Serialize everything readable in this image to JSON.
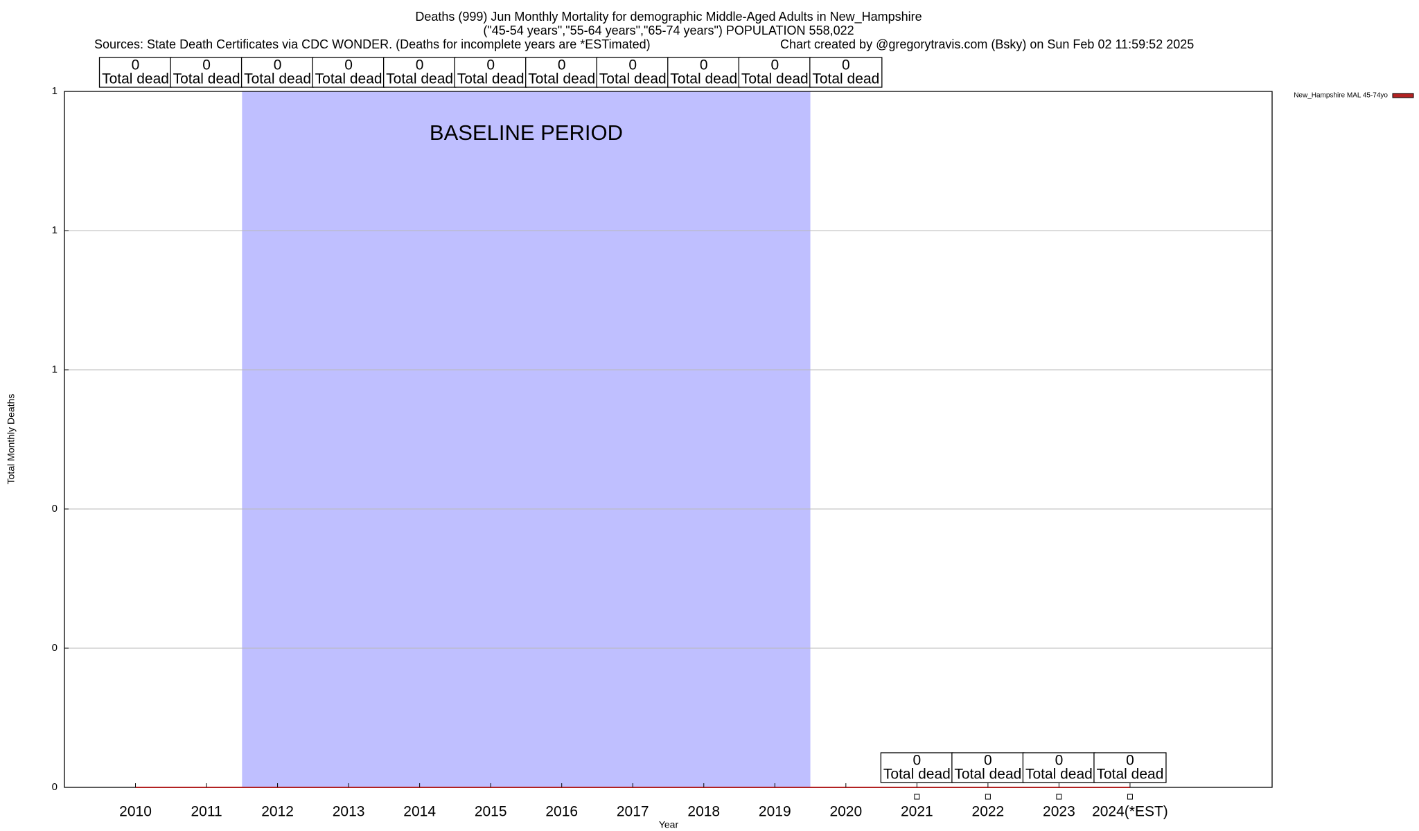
{
  "chart_data": {
    "type": "line",
    "title": "Deaths (999) Jun Monthly Mortality for demographic Middle-Aged Adults in New_Hampshire",
    "subtitle": "(\"45-54 years\",\"55-64 years\",\"65-74 years\") POPULATION 558,022",
    "sources": "Sources: State Death Certificates via CDC WONDER. (Deaths for incomplete years are *ESTimated)",
    "credit": "Chart created by @gregorytravis.com (Bsky) on Sun Feb 02 11:59:52 2025",
    "x_label": "Year",
    "y_label": "Total Monthly Deaths",
    "categories": [
      "2010",
      "2011",
      "2012",
      "2013",
      "2014",
      "2015",
      "2016",
      "2017",
      "2018",
      "2019",
      "2020",
      "2021",
      "2022",
      "2023",
      "2024(*EST)"
    ],
    "series": [
      {
        "name": "New_Hampshire MAL 45-74yo",
        "color": "#b22222",
        "values": [
          0,
          0,
          0,
          0,
          0,
          0,
          0,
          0,
          0,
          0,
          0,
          0,
          0,
          0,
          0
        ]
      }
    ],
    "data_label_text": "Total dead",
    "baseline": {
      "label": "BASELINE PERIOD",
      "start": "2012",
      "end": "2019",
      "color": "#bfbfff"
    },
    "ylim": [
      0,
      1
    ],
    "yticks": [
      0,
      {
        "value": 0.2,
        "label": "0"
      },
      {
        "value": 0.4,
        "label": "0"
      },
      {
        "value": 0.6,
        "label": "1"
      },
      {
        "value": 0.8,
        "label": "1"
      },
      {
        "value": 1,
        "label": "1"
      }
    ],
    "grid": true,
    "legend": "top-right"
  }
}
